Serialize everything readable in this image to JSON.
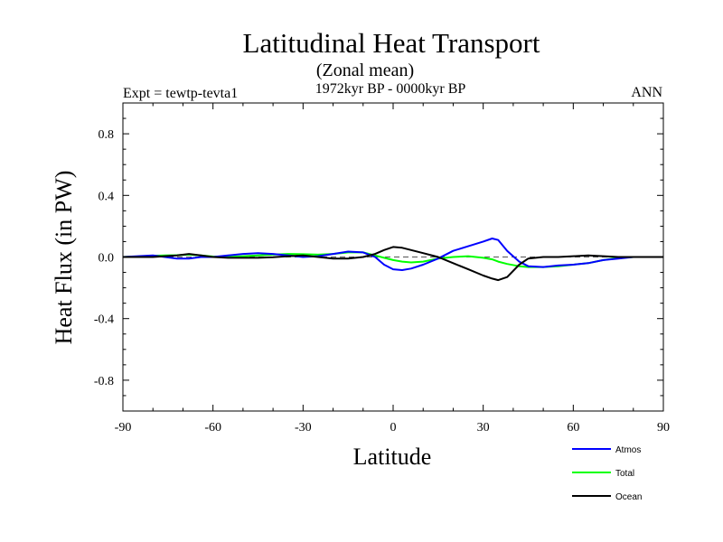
{
  "chart_data": {
    "type": "line",
    "title": "Latitudinal Heat Transport",
    "subtitle": "(Zonal mean)",
    "left_label": "Expt = tewtp-tevta1",
    "center_label": "1972kyr BP - 0000kyr BP",
    "right_label": "ANN",
    "xlabel": "Latitude",
    "ylabel": "Heat Flux (in PW)",
    "xlim": [
      -90,
      90
    ],
    "ylim": [
      -1.0,
      1.0
    ],
    "xticks": [
      -90,
      -60,
      -30,
      0,
      30,
      60,
      90
    ],
    "xtick_labels": [
      "-90",
      "-60",
      "-30",
      "0",
      "30",
      "60",
      "90"
    ],
    "yticks": [
      -0.8,
      -0.4,
      0.0,
      0.4,
      0.8
    ],
    "ytick_labels": [
      "-0.8",
      "-0.4",
      "0.0",
      "0.4",
      "0.8"
    ],
    "zero_line": "dashed",
    "legend_position": "bottom-right",
    "series": [
      {
        "name": "Atmos",
        "color": "#0000ff",
        "x": [
          -90,
          -85,
          -80,
          -76,
          -72,
          -68,
          -64,
          -60,
          -55,
          -50,
          -45,
          -40,
          -35,
          -30,
          -25,
          -20,
          -15,
          -10,
          -6,
          -3,
          0,
          3,
          6,
          10,
          15,
          20,
          25,
          30,
          33,
          35,
          38,
          42,
          45,
          50,
          55,
          60,
          65,
          70,
          75,
          80,
          85,
          90
        ],
        "y": [
          0.0,
          0.005,
          0.01,
          0.0,
          -0.01,
          -0.01,
          0.0,
          0.0,
          0.01,
          0.02,
          0.025,
          0.02,
          0.01,
          0.0,
          0.005,
          0.02,
          0.035,
          0.03,
          0.0,
          -0.05,
          -0.08,
          -0.085,
          -0.075,
          -0.05,
          -0.01,
          0.04,
          0.07,
          0.1,
          0.12,
          0.11,
          0.04,
          -0.03,
          -0.06,
          -0.065,
          -0.055,
          -0.05,
          -0.04,
          -0.02,
          -0.01,
          0.0,
          0.0,
          0.0
        ]
      },
      {
        "name": "Total",
        "color": "#00ff00",
        "x": [
          -90,
          -85,
          -80,
          -76,
          -72,
          -68,
          -64,
          -60,
          -55,
          -50,
          -45,
          -40,
          -35,
          -30,
          -25,
          -20,
          -15,
          -10,
          -6,
          -3,
          0,
          3,
          6,
          10,
          15,
          20,
          25,
          30,
          33,
          35,
          38,
          42,
          45,
          50,
          55,
          60,
          65,
          70,
          75,
          80,
          85,
          90
        ],
        "y": [
          0.0,
          0.003,
          0.008,
          0.01,
          0.012,
          0.015,
          0.01,
          0.003,
          0.0,
          0.005,
          0.01,
          0.015,
          0.02,
          0.018,
          0.015,
          0.02,
          0.03,
          0.03,
          0.01,
          -0.005,
          -0.02,
          -0.03,
          -0.035,
          -0.03,
          -0.01,
          0.0,
          0.005,
          -0.005,
          -0.015,
          -0.03,
          -0.045,
          -0.06,
          -0.065,
          -0.065,
          -0.06,
          -0.05,
          -0.04,
          -0.02,
          -0.005,
          0.0,
          0.0,
          0.0
        ]
      },
      {
        "name": "Ocean",
        "color": "#000000",
        "x": [
          -90,
          -85,
          -80,
          -76,
          -72,
          -68,
          -64,
          -60,
          -55,
          -50,
          -45,
          -40,
          -35,
          -30,
          -25,
          -20,
          -15,
          -10,
          -6,
          -3,
          0,
          3,
          6,
          10,
          15,
          20,
          25,
          30,
          33,
          35,
          38,
          42,
          45,
          50,
          55,
          60,
          65,
          70,
          75,
          80,
          85,
          90
        ],
        "y": [
          0.0,
          0.0,
          0.0,
          0.005,
          0.01,
          0.02,
          0.01,
          0.0,
          -0.005,
          -0.005,
          -0.005,
          -0.002,
          0.005,
          0.01,
          0.0,
          -0.01,
          -0.01,
          0.0,
          0.02,
          0.045,
          0.065,
          0.06,
          0.045,
          0.025,
          0.0,
          -0.04,
          -0.08,
          -0.12,
          -0.14,
          -0.15,
          -0.13,
          -0.05,
          -0.01,
          0.0,
          0.0,
          0.005,
          0.01,
          0.005,
          0.0,
          0.0,
          0.0,
          0.0
        ]
      }
    ]
  }
}
